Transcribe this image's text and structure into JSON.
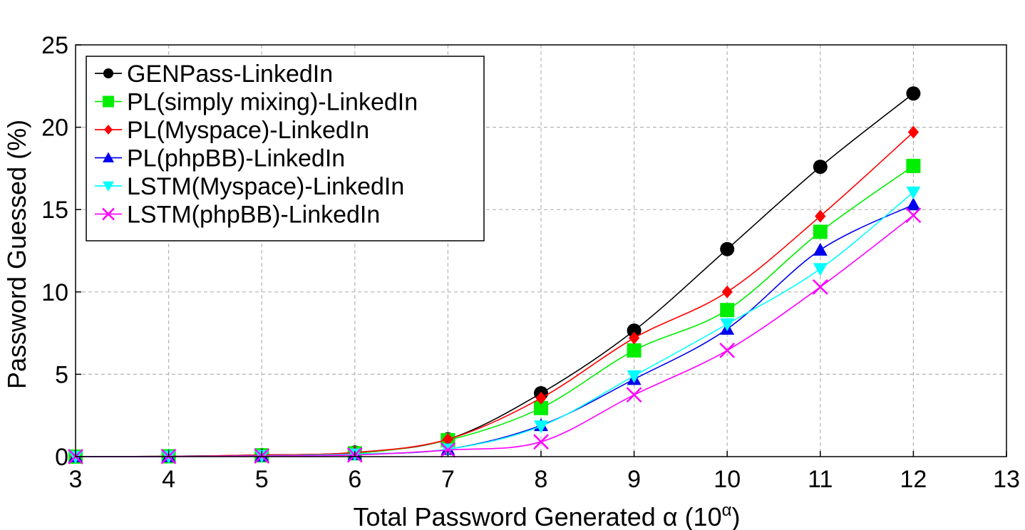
{
  "chart_data": {
    "type": "line",
    "xlabel": "Total Password Generated α (10",
    "xlabel_sup": "α",
    "xlabel_close": ")",
    "ylabel": "Password Guessed (%)",
    "xlim": [
      3,
      13
    ],
    "ylim": [
      0,
      25
    ],
    "xticks": [
      "3",
      "4",
      "5",
      "6",
      "7",
      "8",
      "9",
      "10",
      "11",
      "12",
      "13"
    ],
    "yticks": [
      "0",
      "5",
      "10",
      "15",
      "20",
      "25"
    ],
    "grid": true,
    "legend_position": "top-left",
    "x": [
      3,
      4,
      5,
      6,
      7,
      8,
      9,
      10,
      11,
      12
    ],
    "series": [
      {
        "name": "GENPass-LinkedIn",
        "color": "#000000",
        "marker": "circle",
        "values": [
          0.0,
          0.02,
          0.1,
          0.25,
          1.05,
          3.85,
          7.65,
          12.6,
          17.6,
          22.05
        ]
      },
      {
        "name": "PL(simply mixing)-LinkedIn",
        "color": "#00ee00",
        "marker": "square",
        "values": [
          0.0,
          0.02,
          0.08,
          0.2,
          1.0,
          2.95,
          6.45,
          8.9,
          13.65,
          17.65
        ]
      },
      {
        "name": "PL(Myspace)-LinkedIn",
        "color": "#ff0000",
        "marker": "diamond",
        "values": [
          0.0,
          0.02,
          0.1,
          0.25,
          1.05,
          3.55,
          7.2,
          10.0,
          14.6,
          19.7
        ]
      },
      {
        "name": "PL(phpBB)-LinkedIn",
        "color": "#0000ee",
        "marker": "triangle-up",
        "values": [
          0.0,
          0.01,
          0.05,
          0.15,
          0.45,
          1.9,
          4.7,
          7.75,
          12.55,
          15.3
        ]
      },
      {
        "name": "LSTM(Myspace)-LinkedIn",
        "color": "#00ffff",
        "marker": "triangle-down",
        "values": [
          0.0,
          0.01,
          0.05,
          0.15,
          0.45,
          1.85,
          4.9,
          8.05,
          11.4,
          16.05
        ]
      },
      {
        "name": "LSTM(phpBB)-LinkedIn",
        "color": "#ff00ff",
        "marker": "x",
        "values": [
          0.0,
          0.01,
          0.04,
          0.1,
          0.4,
          0.9,
          3.75,
          6.45,
          10.3,
          14.65
        ]
      }
    ]
  }
}
